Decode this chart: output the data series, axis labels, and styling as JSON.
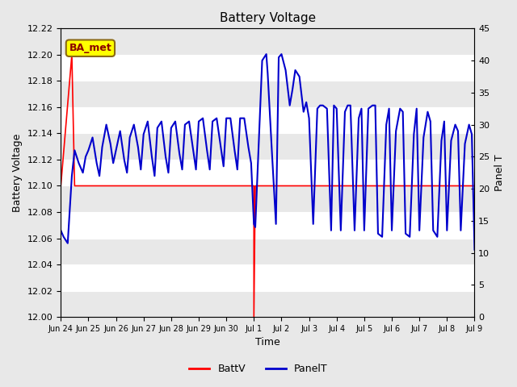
{
  "title": "Battery Voltage",
  "ylabel_left": "Battery Voltage",
  "ylabel_right": "Panel T",
  "xlabel": "Time",
  "ylim_left": [
    12.0,
    12.22
  ],
  "ylim_right": [
    0,
    45
  ],
  "yticks_left": [
    12.0,
    12.02,
    12.04,
    12.06,
    12.08,
    12.1,
    12.12,
    12.14,
    12.16,
    12.18,
    12.2,
    12.22
  ],
  "yticks_right": [
    0,
    5,
    10,
    15,
    20,
    25,
    30,
    35,
    40,
    45
  ],
  "xtick_labels": [
    "Jun 24",
    "Jun 25",
    "Jun 26",
    "Jun 27",
    "Jun 28",
    "Jun 29",
    "Jun 30",
    "Jul 1",
    "Jul 2",
    "Jul 3",
    "Jul 4",
    "Jul 5",
    "Jul 6",
    "Jul 7",
    "Jul 8",
    "Jul 9"
  ],
  "background_color": "#e8e8e8",
  "plot_bg_color": "#dcdcdc",
  "grid_color": "#ffffff",
  "band_color_light": "#e8e8e8",
  "band_color_dark": "#d0d0d0",
  "annotation_text": "BA_met",
  "annotation_bg": "#ffff00",
  "annotation_border": "#8B6914",
  "legend_entries": [
    "BattV",
    "PanelT"
  ],
  "batt_color": "#ff0000",
  "panel_color": "#0000cc",
  "batt_linewidth": 1.2,
  "panel_linewidth": 1.5,
  "batt_data_x": [
    0.0,
    0.4,
    0.5,
    7.0,
    7.0,
    7.05,
    15.0
  ],
  "batt_data_y": [
    12.1,
    12.2,
    12.1,
    12.1,
    12.0,
    12.1,
    12.1
  ],
  "panel_data_x": [
    0.0,
    0.1,
    0.25,
    0.4,
    0.5,
    0.65,
    0.8,
    0.9,
    1.0,
    1.15,
    1.3,
    1.4,
    1.5,
    1.65,
    1.8,
    1.9,
    2.0,
    2.15,
    2.3,
    2.4,
    2.5,
    2.65,
    2.8,
    2.9,
    3.0,
    3.15,
    3.3,
    3.4,
    3.5,
    3.65,
    3.8,
    3.9,
    4.0,
    4.15,
    4.3,
    4.4,
    4.5,
    4.65,
    4.8,
    4.9,
    5.0,
    5.15,
    5.3,
    5.4,
    5.5,
    5.65,
    5.8,
    5.9,
    6.0,
    6.15,
    6.3,
    6.4,
    6.5,
    6.65,
    6.8,
    6.9,
    7.0,
    7.05,
    7.3,
    7.45,
    7.5,
    7.65,
    7.8,
    7.9,
    8.0,
    8.15,
    8.3,
    8.4,
    8.5,
    8.65,
    8.8,
    8.9,
    9.0,
    9.15,
    9.3,
    9.4,
    9.5,
    9.65,
    9.8,
    9.9,
    10.0,
    10.15,
    10.3,
    10.4,
    10.5,
    10.65,
    10.8,
    10.9,
    11.0,
    11.15,
    11.3,
    11.4,
    11.5,
    11.65,
    11.8,
    11.9,
    12.0,
    12.15,
    12.3,
    12.4,
    12.5,
    12.65,
    12.8,
    12.9,
    13.0,
    13.15,
    13.3,
    13.4,
    13.5,
    13.65,
    13.8,
    13.9,
    14.0,
    14.15,
    14.3,
    14.4,
    14.5,
    14.65,
    14.8,
    14.9,
    15.0
  ],
  "panel_data_y": [
    13.5,
    12.5,
    11.5,
    22.0,
    26.0,
    24.0,
    22.5,
    25.0,
    26.0,
    28.0,
    24.0,
    22.0,
    26.5,
    30.0,
    27.0,
    24.0,
    26.0,
    29.0,
    24.5,
    22.5,
    28.0,
    30.0,
    26.5,
    23.0,
    28.5,
    30.5,
    25.0,
    22.0,
    29.5,
    30.5,
    25.0,
    22.5,
    29.5,
    30.5,
    25.5,
    23.0,
    30.0,
    30.5,
    26.0,
    23.0,
    30.5,
    31.0,
    26.0,
    23.0,
    30.5,
    31.0,
    26.5,
    23.5,
    31.0,
    31.0,
    26.0,
    23.0,
    31.0,
    31.0,
    26.5,
    24.0,
    14.5,
    14.0,
    40.0,
    41.0,
    38.0,
    26.0,
    14.5,
    40.5,
    41.0,
    38.5,
    33.0,
    35.5,
    38.5,
    37.5,
    32.0,
    33.5,
    31.0,
    14.5,
    32.5,
    33.0,
    33.0,
    32.5,
    13.5,
    33.0,
    32.5,
    13.5,
    32.0,
    33.0,
    33.0,
    13.5,
    31.0,
    32.5,
    13.5,
    32.5,
    33.0,
    33.0,
    13.0,
    12.5,
    30.0,
    32.5,
    13.5,
    29.0,
    32.5,
    32.0,
    13.0,
    12.5,
    28.5,
    32.5,
    13.5,
    28.0,
    32.0,
    30.5,
    13.5,
    12.5,
    27.5,
    30.5,
    13.5,
    27.5,
    30.0,
    29.0,
    13.5,
    27.0,
    30.0,
    28.5,
    10.5
  ]
}
